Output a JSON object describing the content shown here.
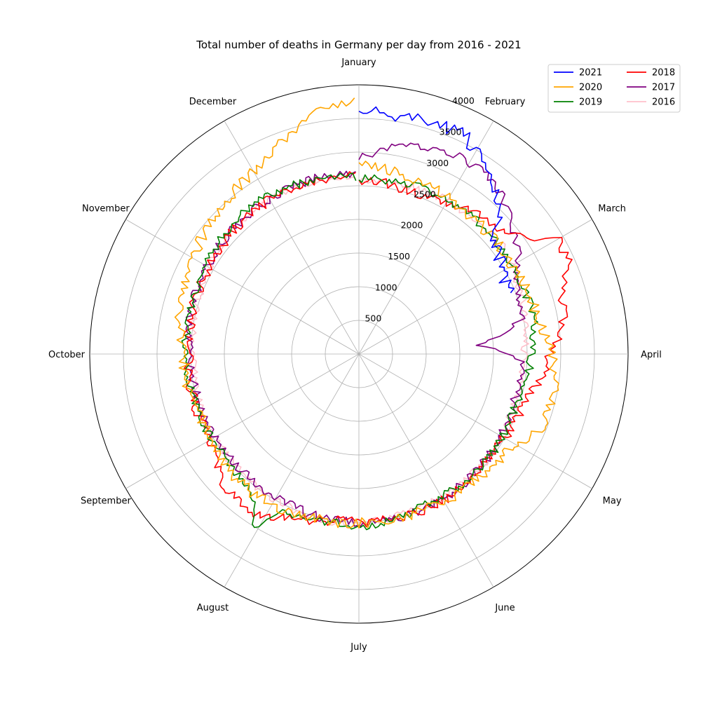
{
  "chart_data": {
    "type": "line",
    "projection": "polar",
    "title": "Total number of deaths in Germany per day from 2016 - 2021",
    "angular_axis": {
      "direction": "clockwise",
      "zero_at": "top",
      "labels": [
        "January",
        "February",
        "March",
        "April",
        "May",
        "June",
        "July",
        "August",
        "September",
        "October",
        "November",
        "December"
      ]
    },
    "radial_axis": {
      "rlim": [
        0,
        4000
      ],
      "ticks": [
        500,
        1000,
        1500,
        2000,
        2500,
        3000,
        3500,
        4000
      ]
    },
    "grid": true,
    "legend": {
      "position": "top-right",
      "columns": 2
    },
    "x_unit": "day of year",
    "series": [
      {
        "name": "2021",
        "color": "#0000ff",
        "day_range": [
          1,
          70
        ],
        "anchors": [
          [
            1,
            3630
          ],
          [
            10,
            3590
          ],
          [
            20,
            3620
          ],
          [
            30,
            3560
          ],
          [
            38,
            3330
          ],
          [
            45,
            3050
          ],
          [
            52,
            2600
          ],
          [
            60,
            2460
          ],
          [
            66,
            2430
          ],
          [
            70,
            2400
          ]
        ],
        "noise": 120
      },
      {
        "name": "2020",
        "color": "#ffa500",
        "day_range": [
          1,
          366
        ],
        "anchors": [
          [
            1,
            2860
          ],
          [
            15,
            2740
          ],
          [
            40,
            2640
          ],
          [
            60,
            2620
          ],
          [
            80,
            2700
          ],
          [
            96,
            2900
          ],
          [
            106,
            2950
          ],
          [
            115,
            2900
          ],
          [
            125,
            2660
          ],
          [
            135,
            2560
          ],
          [
            160,
            2520
          ],
          [
            190,
            2510
          ],
          [
            215,
            2590
          ],
          [
            228,
            2600
          ],
          [
            250,
            2520
          ],
          [
            275,
            2620
          ],
          [
            290,
            2730
          ],
          [
            305,
            2850
          ],
          [
            320,
            2950
          ],
          [
            335,
            3100
          ],
          [
            350,
            3450
          ],
          [
            358,
            3650
          ],
          [
            366,
            3800
          ]
        ],
        "noise": 85
      },
      {
        "name": "2019",
        "color": "#008000",
        "day_range": [
          1,
          365
        ],
        "anchors": [
          [
            1,
            2600
          ],
          [
            20,
            2640
          ],
          [
            40,
            2640
          ],
          [
            60,
            2620
          ],
          [
            80,
            2650
          ],
          [
            110,
            2450
          ],
          [
            130,
            2470
          ],
          [
            160,
            2450
          ],
          [
            180,
            2560
          ],
          [
            195,
            2540
          ],
          [
            210,
            2620
          ],
          [
            215,
            3000
          ],
          [
            222,
            2550
          ],
          [
            240,
            2520
          ],
          [
            270,
            2560
          ],
          [
            300,
            2620
          ],
          [
            330,
            2720
          ],
          [
            365,
            2640
          ]
        ],
        "noise": 65
      },
      {
        "name": "2018",
        "color": "#ff0000",
        "day_range": [
          1,
          365
        ],
        "anchors": [
          [
            1,
            2600
          ],
          [
            20,
            2520
          ],
          [
            35,
            2620
          ],
          [
            50,
            2800
          ],
          [
            58,
            3100
          ],
          [
            62,
            3400
          ],
          [
            68,
            3400
          ],
          [
            76,
            3150
          ],
          [
            85,
            3050
          ],
          [
            92,
            2850
          ],
          [
            100,
            2730
          ],
          [
            110,
            2550
          ],
          [
            130,
            2460
          ],
          [
            160,
            2520
          ],
          [
            190,
            2500
          ],
          [
            205,
            2600
          ],
          [
            215,
            2820
          ],
          [
            222,
            2800
          ],
          [
            232,
            2780
          ],
          [
            240,
            2550
          ],
          [
            270,
            2540
          ],
          [
            300,
            2560
          ],
          [
            330,
            2640
          ],
          [
            365,
            2650
          ]
        ],
        "noise": 80
      },
      {
        "name": "2017",
        "color": "#800080",
        "day_range": [
          1,
          365
        ],
        "anchors": [
          [
            1,
            2900
          ],
          [
            10,
            3100
          ],
          [
            20,
            3250
          ],
          [
            30,
            3300
          ],
          [
            40,
            3250
          ],
          [
            50,
            3000
          ],
          [
            58,
            2850
          ],
          [
            65,
            2620
          ],
          [
            70,
            2520
          ],
          [
            80,
            2460
          ],
          [
            88,
            1800
          ],
          [
            95,
            2400
          ],
          [
            110,
            2420
          ],
          [
            130,
            2450
          ],
          [
            160,
            2500
          ],
          [
            190,
            2500
          ],
          [
            220,
            2450
          ],
          [
            250,
            2470
          ],
          [
            270,
            2500
          ],
          [
            300,
            2600
          ],
          [
            330,
            2650
          ],
          [
            365,
            2700
          ]
        ],
        "noise": 70
      },
      {
        "name": "2016",
        "color": "#ffc0cb",
        "day_range": [
          1,
          366
        ],
        "anchors": [
          [
            1,
            2560
          ],
          [
            20,
            2600
          ],
          [
            40,
            2640
          ],
          [
            55,
            2660
          ],
          [
            62,
            2620
          ],
          [
            75,
            2560
          ],
          [
            90,
            2460
          ],
          [
            110,
            2430
          ],
          [
            130,
            2470
          ],
          [
            160,
            2460
          ],
          [
            190,
            2520
          ],
          [
            220,
            2500
          ],
          [
            250,
            2470
          ],
          [
            275,
            2460
          ],
          [
            300,
            2550
          ],
          [
            330,
            2650
          ],
          [
            366,
            2650
          ]
        ],
        "noise": 65
      }
    ]
  }
}
